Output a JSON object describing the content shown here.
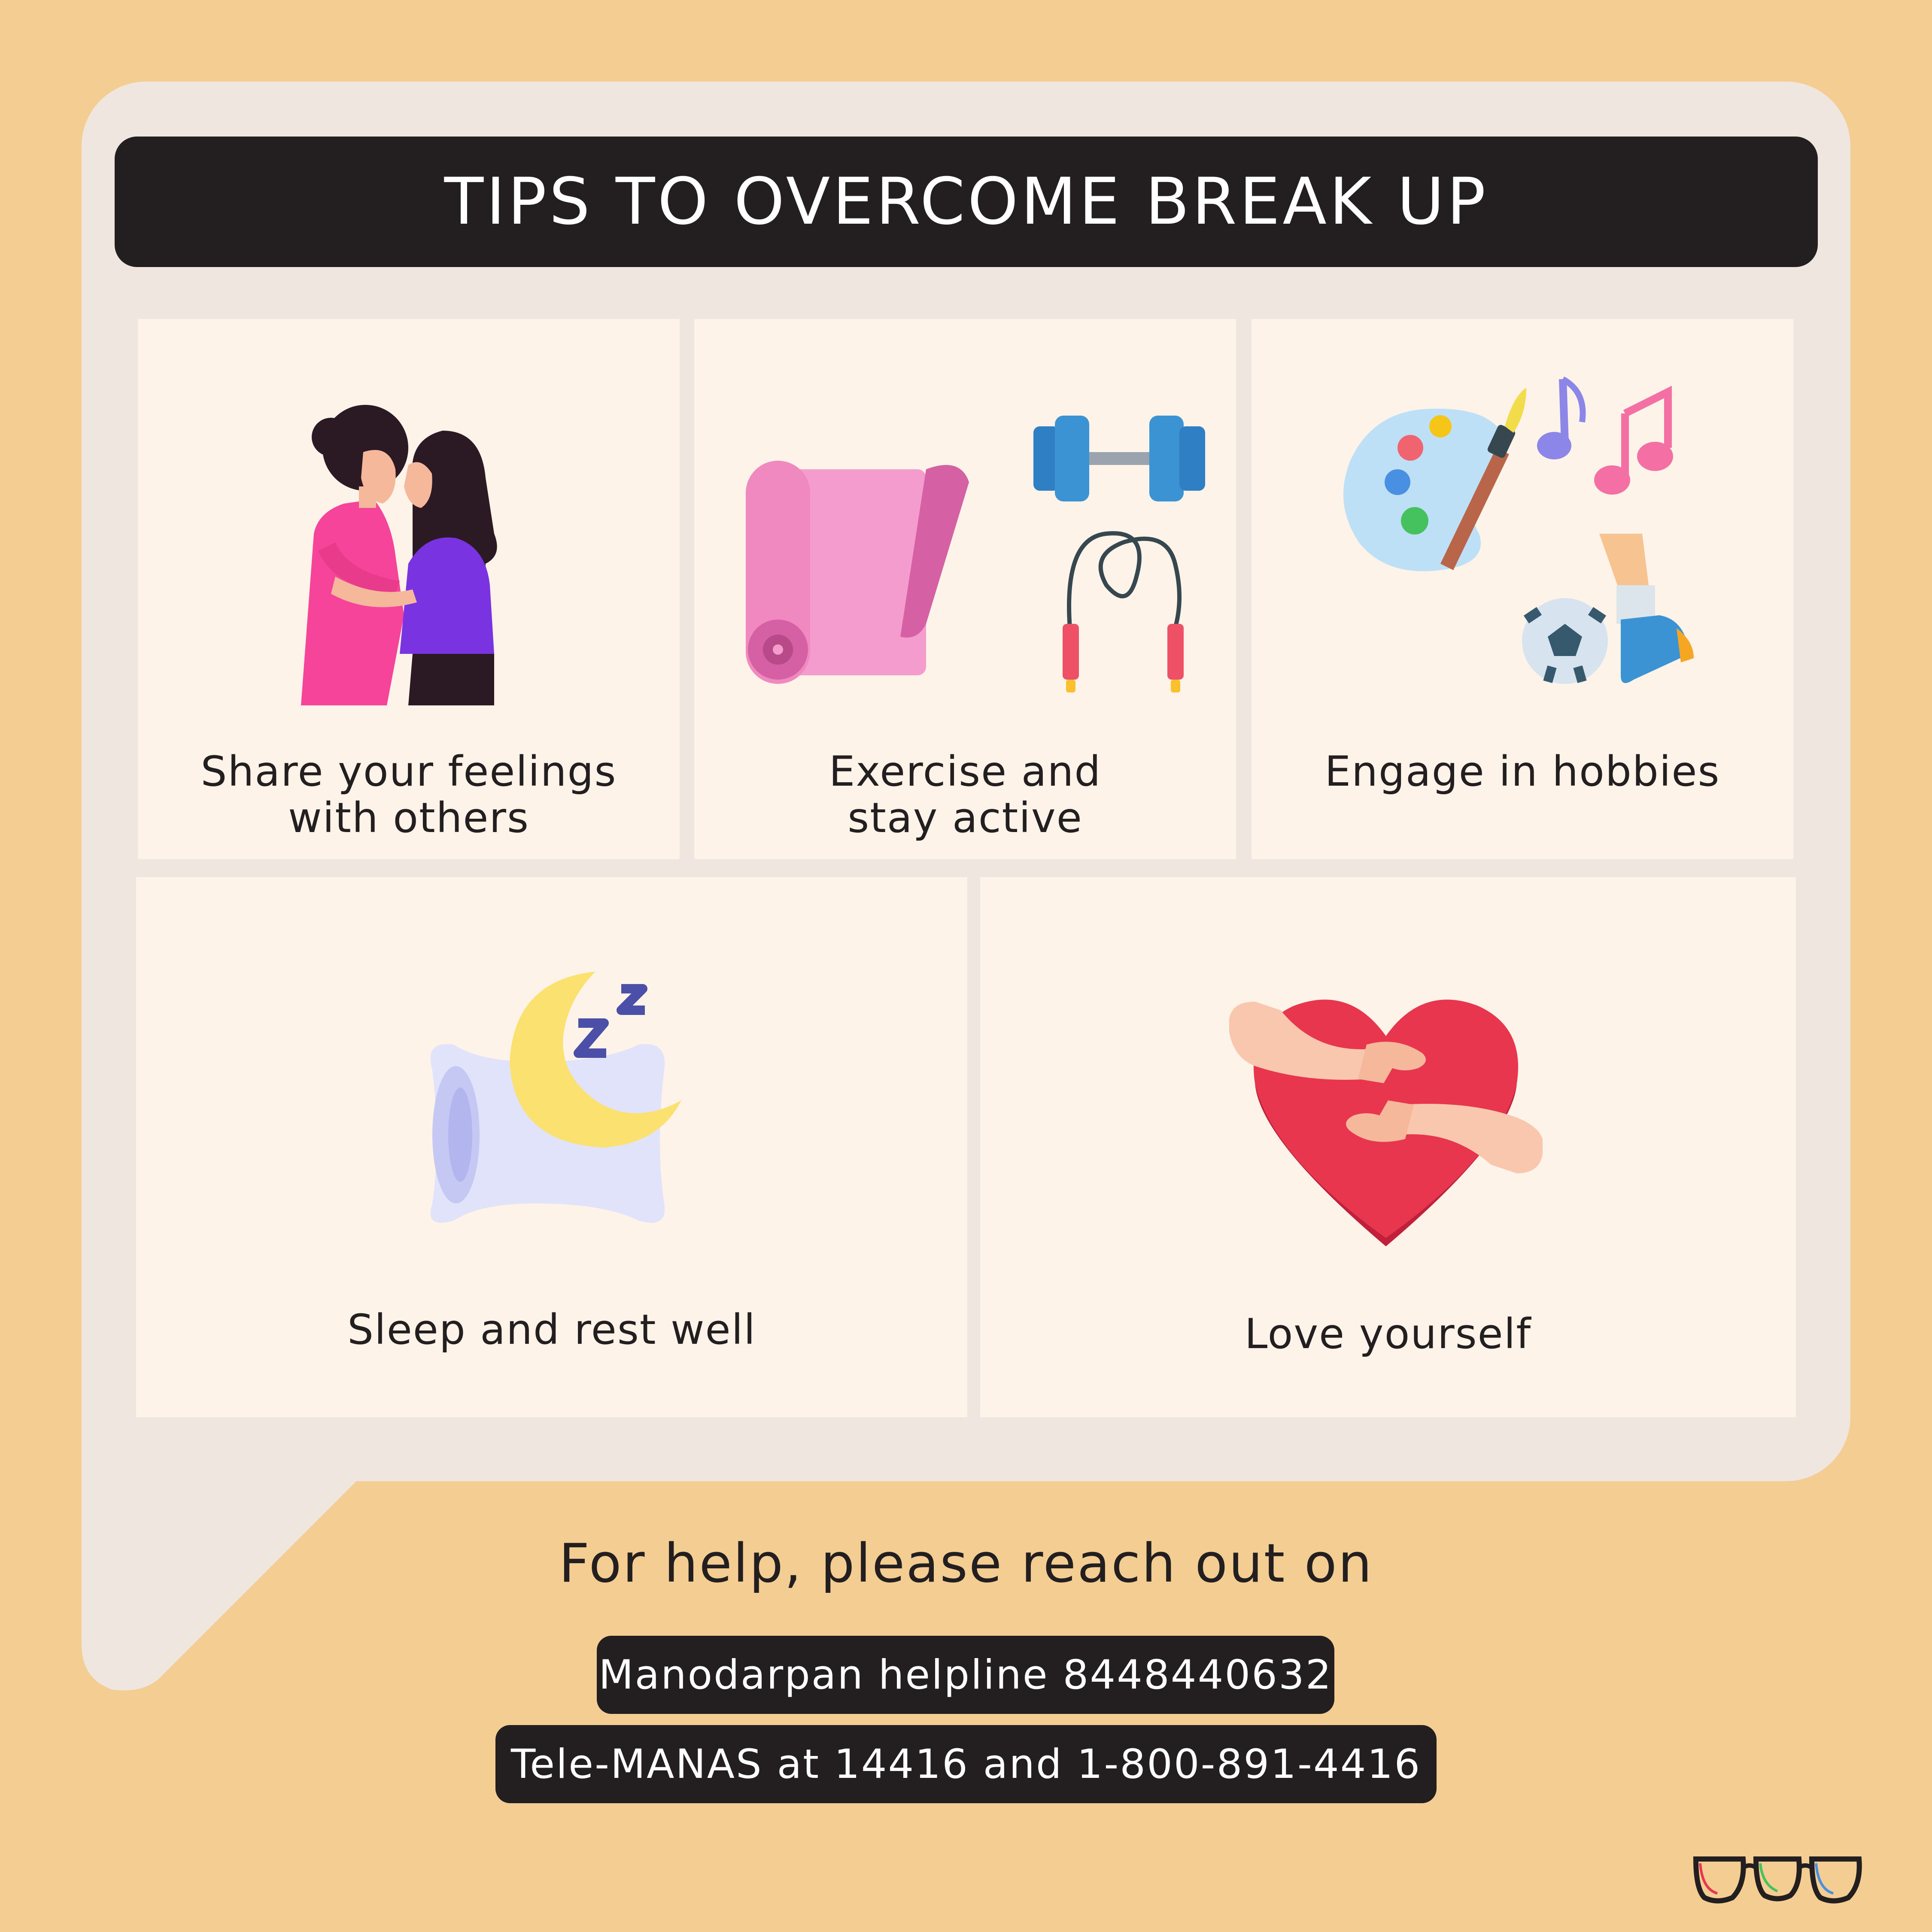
{
  "title": "TIPS TO OVERCOME BREAK UP",
  "tips": [
    {
      "line1": "Share your feelings",
      "line2": "with others",
      "icon": "hugging-people-icon"
    },
    {
      "line1": "Exercise and",
      "line2": "stay active",
      "icon": "yoga-mat-dumbbell-jump-rope-icon"
    },
    {
      "line1": "Engage in hobbies",
      "line2": "",
      "icon": "palette-music-football-icon"
    },
    {
      "line1": "Sleep and rest well",
      "line2": "",
      "icon": "pillow-moon-sleep-icon"
    },
    {
      "line1": "Love yourself",
      "line2": "",
      "icon": "hugging-heart-icon"
    }
  ],
  "help": {
    "heading": "For help, please reach out on",
    "helpline_1": "Manodarpan helpline 8448440632",
    "helpline_2": "Tele-MANAS at 14416 and 1-800-891-4416"
  },
  "colors": {
    "background": "#F4CD92",
    "bubble": "#EFE6DF",
    "card": "#FEF3E8",
    "dark": "#231F20"
  },
  "logo_icon": "glasses-logo-icon"
}
